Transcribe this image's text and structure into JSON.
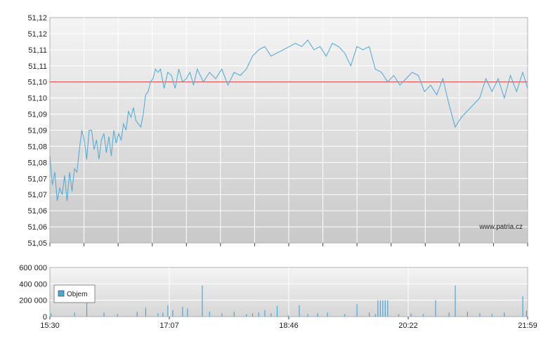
{
  "watermark": "www.patria.cz",
  "colors": {
    "price_line": "#4aa8d8",
    "reference_line": "#e03030",
    "volume_bar": "#4aa8d8",
    "grid": "#ffffff",
    "plot_bg_top": "#f4f4f4",
    "plot_bg_bottom": "#c9c9c9"
  },
  "chart_data": [
    {
      "type": "line",
      "title": "",
      "xlabel": "",
      "ylabel": "",
      "x_ticks": [
        "15:30",
        "17:07",
        "18:46",
        "20:22",
        "21:59"
      ],
      "y_ticks": [
        "51,05",
        "51,06",
        "51,06",
        "51,07",
        "51,07",
        "51,08",
        "51,08",
        "51,09",
        "51,09",
        "51,10",
        "51,10",
        "51,11",
        "51,11",
        "51,12",
        "51,12"
      ],
      "ylim": [
        51.05,
        51.12
      ],
      "reference_value": 51.1,
      "grid": true,
      "series": [
        {
          "x": [
            "15:30",
            "15:32",
            "15:34",
            "15:36",
            "15:38",
            "15:40",
            "15:42",
            "15:44",
            "15:46",
            "15:48",
            "15:50",
            "15:52",
            "15:54",
            "15:56",
            "15:58",
            "16:00",
            "16:02",
            "16:04",
            "16:06",
            "16:08",
            "16:10",
            "16:12",
            "16:14",
            "16:16",
            "16:18",
            "16:20",
            "16:22",
            "16:24",
            "16:26",
            "16:28",
            "16:30",
            "16:32",
            "16:34",
            "16:36",
            "16:38",
            "16:40",
            "16:42",
            "16:44",
            "16:46",
            "16:48",
            "16:50",
            "16:52",
            "16:54",
            "16:56",
            "16:58",
            "17:00",
            "17:03",
            "17:06",
            "17:09",
            "17:12",
            "17:15",
            "17:18",
            "17:21",
            "17:24",
            "17:27",
            "17:30",
            "17:35",
            "17:40",
            "17:45",
            "17:50",
            "17:55",
            "18:00",
            "18:05",
            "18:10",
            "18:15",
            "18:20",
            "18:25",
            "18:30",
            "18:35",
            "18:40",
            "18:45",
            "18:50",
            "18:55",
            "19:00",
            "19:05",
            "19:10",
            "19:15",
            "19:20",
            "19:25",
            "19:30",
            "19:35",
            "19:40",
            "19:45",
            "19:50",
            "19:55",
            "20:00",
            "20:05",
            "20:10",
            "20:15",
            "20:20",
            "20:25",
            "20:30",
            "20:35",
            "20:40",
            "20:45",
            "20:50",
            "20:55",
            "21:00",
            "21:05",
            "21:10",
            "21:15",
            "21:20",
            "21:25",
            "21:30",
            "21:35",
            "21:40",
            "21:45",
            "21:50",
            "21:55",
            "21:59"
          ],
          "values": [
            51.077,
            51.068,
            51.072,
            51.063,
            51.067,
            51.065,
            51.071,
            51.063,
            51.072,
            51.066,
            51.073,
            51.072,
            51.079,
            51.085,
            51.082,
            51.076,
            51.085,
            51.085,
            51.079,
            51.082,
            51.076,
            51.082,
            51.084,
            51.078,
            51.083,
            51.077,
            51.085,
            51.081,
            51.084,
            51.082,
            51.087,
            51.085,
            51.091,
            51.089,
            51.092,
            51.088,
            51.087,
            51.086,
            51.09,
            51.096,
            51.097,
            51.1,
            51.101,
            51.104,
            51.103,
            51.104,
            51.098,
            51.103,
            51.102,
            51.098,
            51.104,
            51.1,
            51.101,
            51.103,
            51.099,
            51.104,
            51.1,
            51.103,
            51.101,
            51.104,
            51.099,
            51.103,
            51.102,
            51.104,
            51.108,
            51.11,
            51.111,
            51.108,
            51.109,
            51.11,
            51.111,
            51.112,
            51.111,
            51.113,
            51.11,
            51.111,
            51.108,
            51.112,
            51.111,
            51.109,
            51.105,
            51.111,
            51.11,
            51.111,
            51.104,
            51.103,
            51.1,
            51.102,
            51.099,
            51.101,
            51.103,
            51.102,
            51.097,
            51.099,
            51.096,
            51.101,
            51.093,
            51.086,
            51.089,
            51.091,
            51.093,
            51.095,
            51.101,
            51.097,
            51.101,
            51.095,
            51.102,
            51.097,
            51.103,
            51.098
          ]
        }
      ]
    },
    {
      "type": "bar",
      "title": "",
      "xlabel": "",
      "ylabel": "",
      "y_ticks": [
        "0",
        "200 000",
        "400 000",
        "600 000"
      ],
      "ylim": [
        0,
        600000
      ],
      "legend": [
        "Objem"
      ],
      "legend_placement": "top-left",
      "series": [
        {
          "name": "Objem",
          "x": [
            "15:31",
            "15:50",
            "16:00",
            "16:14",
            "16:25",
            "16:41",
            "16:48",
            "16:58",
            "17:02",
            "17:06",
            "17:10",
            "17:18",
            "17:22",
            "17:34",
            "17:40",
            "17:50",
            "18:00",
            "18:10",
            "18:15",
            "18:20",
            "18:25",
            "18:30",
            "18:35",
            "18:44",
            "18:53",
            "19:00",
            "19:08",
            "19:16",
            "19:30",
            "19:40",
            "19:50",
            "19:55",
            "19:57",
            "19:59",
            "20:01",
            "20:03",
            "20:05",
            "20:14",
            "20:24",
            "20:34",
            "20:44",
            "20:55",
            "21:00",
            "21:10",
            "21:20",
            "21:30",
            "21:40",
            "21:55",
            "21:58"
          ],
          "values": [
            40000,
            50000,
            360000,
            50000,
            30000,
            60000,
            110000,
            40000,
            50000,
            140000,
            80000,
            120000,
            100000,
            380000,
            60000,
            40000,
            60000,
            30000,
            40000,
            50000,
            80000,
            40000,
            130000,
            20000,
            140000,
            30000,
            40000,
            50000,
            30000,
            150000,
            50000,
            30000,
            200000,
            200000,
            200000,
            200000,
            200000,
            30000,
            40000,
            30000,
            200000,
            50000,
            380000,
            60000,
            40000,
            30000,
            50000,
            250000,
            70000
          ]
        }
      ]
    }
  ]
}
